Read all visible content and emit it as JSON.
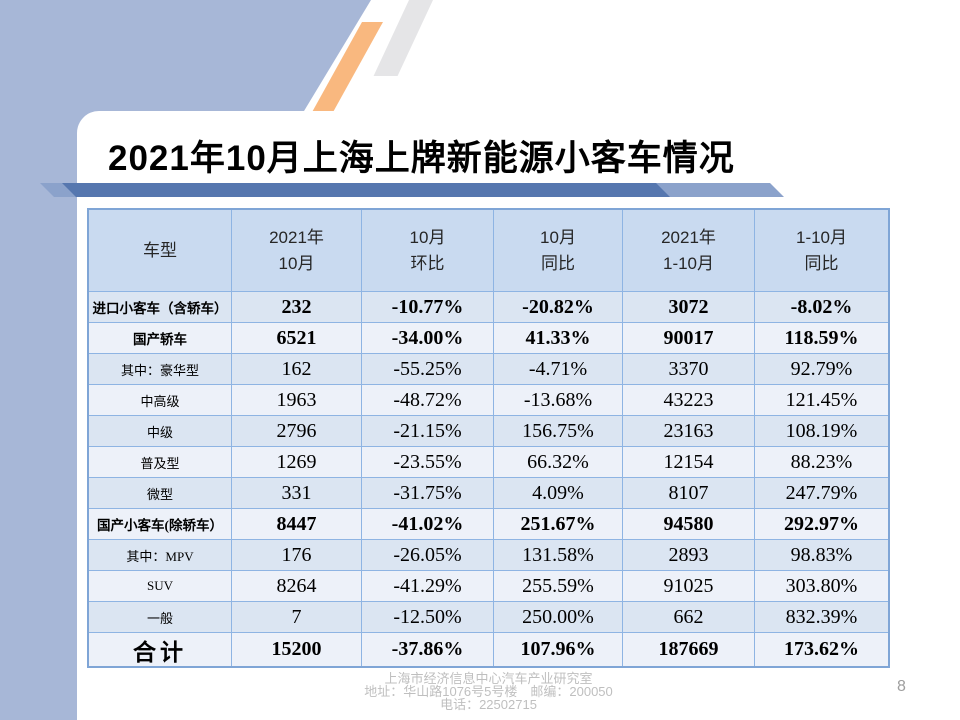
{
  "slide": {
    "title": "2021年10月上海上牌新能源小客车情况",
    "page_number": "8",
    "footer_lines": [
      "上海市经济信息中心汽车产业研究室",
      "地址：华山路1076号5号楼　邮编：200050",
      "电话：22502715"
    ]
  },
  "colors": {
    "background_blue": "#A7B7D7",
    "accent_orange": "#F9B87F",
    "accent_gray": "#E5E5E7",
    "underline_dark_blue": "#5677AF",
    "underline_light_blue": "#8BA2CB",
    "table_border": "#8EB4E3",
    "table_outer_border": "#7FA5D6",
    "header_fill": "#C9DAF0",
    "band_light": "#EDF1F9",
    "band_blue": "#DBE5F2",
    "footer_text": "#BFBFBF"
  },
  "table": {
    "headers": [
      {
        "line1": "车型",
        "line2": ""
      },
      {
        "line1": "2021年",
        "line2": "10月"
      },
      {
        "line1": "10月",
        "line2": "环比"
      },
      {
        "line1": "10月",
        "line2": "同比"
      },
      {
        "line1": "2021年",
        "line2": "1-10月"
      },
      {
        "line1": "1-10月",
        "line2": "同比"
      }
    ],
    "rows": [
      {
        "label": "进口小客车（含轿车）",
        "values": [
          "232",
          "-10.77%",
          "-20.82%",
          "3072",
          "-8.02%"
        ]
      },
      {
        "label": "国产轿车",
        "values": [
          "6521",
          "-34.00%",
          "41.33%",
          "90017",
          "118.59%"
        ]
      },
      {
        "label": "其中：豪华型",
        "values": [
          "162",
          "-55.25%",
          "-4.71%",
          "3370",
          "92.79%"
        ]
      },
      {
        "label": "中高级",
        "values": [
          "1963",
          "-48.72%",
          "-13.68%",
          "43223",
          "121.45%"
        ]
      },
      {
        "label": "中级",
        "values": [
          "2796",
          "-21.15%",
          "156.75%",
          "23163",
          "108.19%"
        ]
      },
      {
        "label": "普及型",
        "values": [
          "1269",
          "-23.55%",
          "66.32%",
          "12154",
          "88.23%"
        ]
      },
      {
        "label": "微型",
        "values": [
          "331",
          "-31.75%",
          "4.09%",
          "8107",
          "247.79%"
        ]
      },
      {
        "label": "国产小客车(除轿车）",
        "values": [
          "8447",
          "-41.02%",
          "251.67%",
          "94580",
          "292.97%"
        ]
      },
      {
        "label": "其中：MPV",
        "values": [
          "176",
          "-26.05%",
          "131.58%",
          "2893",
          "98.83%"
        ]
      },
      {
        "label": "SUV",
        "values": [
          "8264",
          "-41.29%",
          "255.59%",
          "91025",
          "303.80%"
        ]
      },
      {
        "label": "一般",
        "values": [
          "7",
          "-12.50%",
          "250.00%",
          "662",
          "832.39%"
        ]
      },
      {
        "label": "合计",
        "values": [
          "15200",
          "-37.86%",
          "107.96%",
          "187669",
          "173.62%"
        ]
      }
    ]
  }
}
